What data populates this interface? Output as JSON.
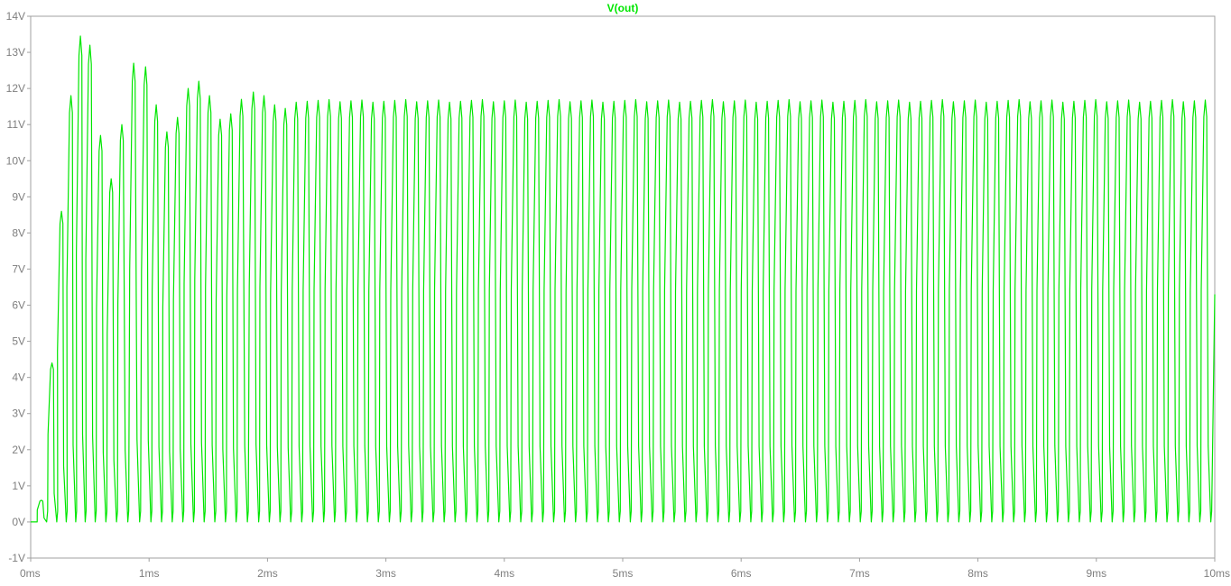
{
  "chart_data": {
    "type": "line",
    "title": "V(out)",
    "xlabel": "",
    "ylabel": "",
    "x_unit": "ms",
    "y_unit": "V",
    "xlim": [
      0,
      10
    ],
    "ylim": [
      -1,
      14
    ],
    "x_ticks": [
      0,
      1,
      2,
      3,
      4,
      5,
      6,
      7,
      8,
      9,
      10
    ],
    "x_tick_labels": [
      "0ms",
      "1ms",
      "2ms",
      "3ms",
      "4ms",
      "5ms",
      "6ms",
      "7ms",
      "8ms",
      "9ms",
      "10ms"
    ],
    "y_ticks": [
      -1,
      0,
      1,
      2,
      3,
      4,
      5,
      6,
      7,
      8,
      9,
      10,
      11,
      12,
      13,
      14
    ],
    "y_tick_labels": [
      "-1V",
      "0V",
      "1V",
      "2V",
      "3V",
      "4V",
      "5V",
      "6V",
      "7V",
      "8V",
      "9V",
      "10V",
      "11V",
      "12V",
      "13V",
      "14V"
    ],
    "grid": false,
    "series": [
      {
        "name": "V(out)",
        "color": "#00e600",
        "description": "oscillation, approx 10.8 cycles per ms, swinging between ~0V and a peak that settles at ~11.65V",
        "peaks": [
          {
            "x": 0.09,
            "y": 0.6
          },
          {
            "x": 0.18,
            "y": 4.4
          },
          {
            "x": 0.26,
            "y": 8.6
          },
          {
            "x": 0.34,
            "y": 11.8
          },
          {
            "x": 0.42,
            "y": 13.45
          },
          {
            "x": 0.5,
            "y": 13.2
          },
          {
            "x": 0.59,
            "y": 10.7
          },
          {
            "x": 0.68,
            "y": 9.5
          },
          {
            "x": 0.77,
            "y": 11.0
          },
          {
            "x": 0.87,
            "y": 12.7
          },
          {
            "x": 0.97,
            "y": 12.6
          },
          {
            "x": 1.06,
            "y": 11.55
          },
          {
            "x": 1.15,
            "y": 10.8
          },
          {
            "x": 1.24,
            "y": 11.2
          },
          {
            "x": 1.33,
            "y": 12.0
          },
          {
            "x": 1.42,
            "y": 12.2
          },
          {
            "x": 1.51,
            "y": 11.8
          },
          {
            "x": 1.6,
            "y": 11.15
          },
          {
            "x": 1.69,
            "y": 11.3
          },
          {
            "x": 1.78,
            "y": 11.7
          },
          {
            "x": 1.88,
            "y": 11.9
          },
          {
            "x": 1.97,
            "y": 11.8
          },
          {
            "x": 2.06,
            "y": 11.55
          },
          {
            "x": 2.15,
            "y": 11.45
          }
        ],
        "steady_peak": 11.65,
        "steady_min": 0.0,
        "period_ms": 0.0925
      }
    ]
  }
}
